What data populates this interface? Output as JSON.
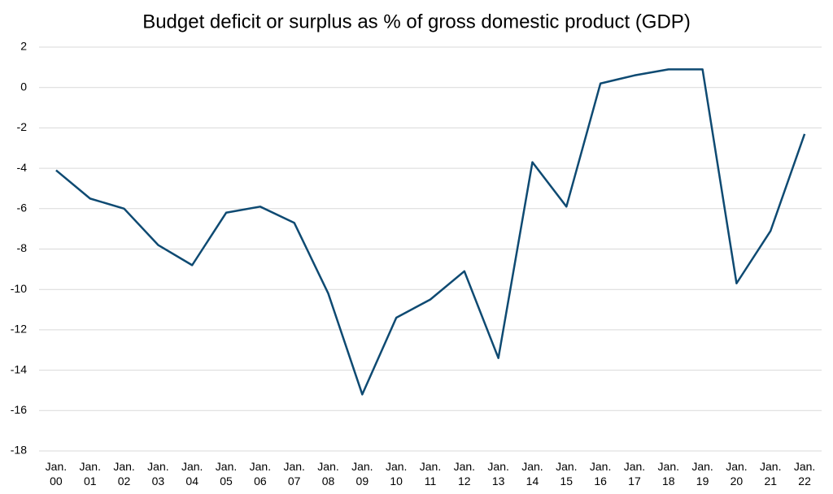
{
  "chart_data": {
    "type": "line",
    "title": "Budget deficit or surplus as % of gross domestic product (GDP)",
    "categories": [
      "Jan. 00",
      "Jan. 01",
      "Jan. 02",
      "Jan. 03",
      "Jan. 04",
      "Jan. 05",
      "Jan. 06",
      "Jan. 07",
      "Jan. 08",
      "Jan. 09",
      "Jan. 10",
      "Jan. 11",
      "Jan. 12",
      "Jan. 13",
      "Jan. 14",
      "Jan. 15",
      "Jan. 16",
      "Jan. 17",
      "Jan. 18",
      "Jan. 19",
      "Jan. 20",
      "Jan. 21",
      "Jan. 22"
    ],
    "values": [
      -4.1,
      -5.5,
      -6.0,
      -7.8,
      -8.8,
      -6.2,
      -5.9,
      -6.7,
      -10.2,
      -15.2,
      -11.4,
      -10.5,
      -9.1,
      -13.4,
      -3.7,
      -5.9,
      0.2,
      0.6,
      0.9,
      0.9,
      -9.7,
      -7.1,
      -2.3
    ],
    "color": "#0e4a72",
    "ylim": [
      -18,
      2
    ],
    "yticks": [
      -18,
      -16,
      -14,
      -12,
      -10,
      -8,
      -6,
      -4,
      -2,
      0,
      2
    ],
    "grid": true
  }
}
